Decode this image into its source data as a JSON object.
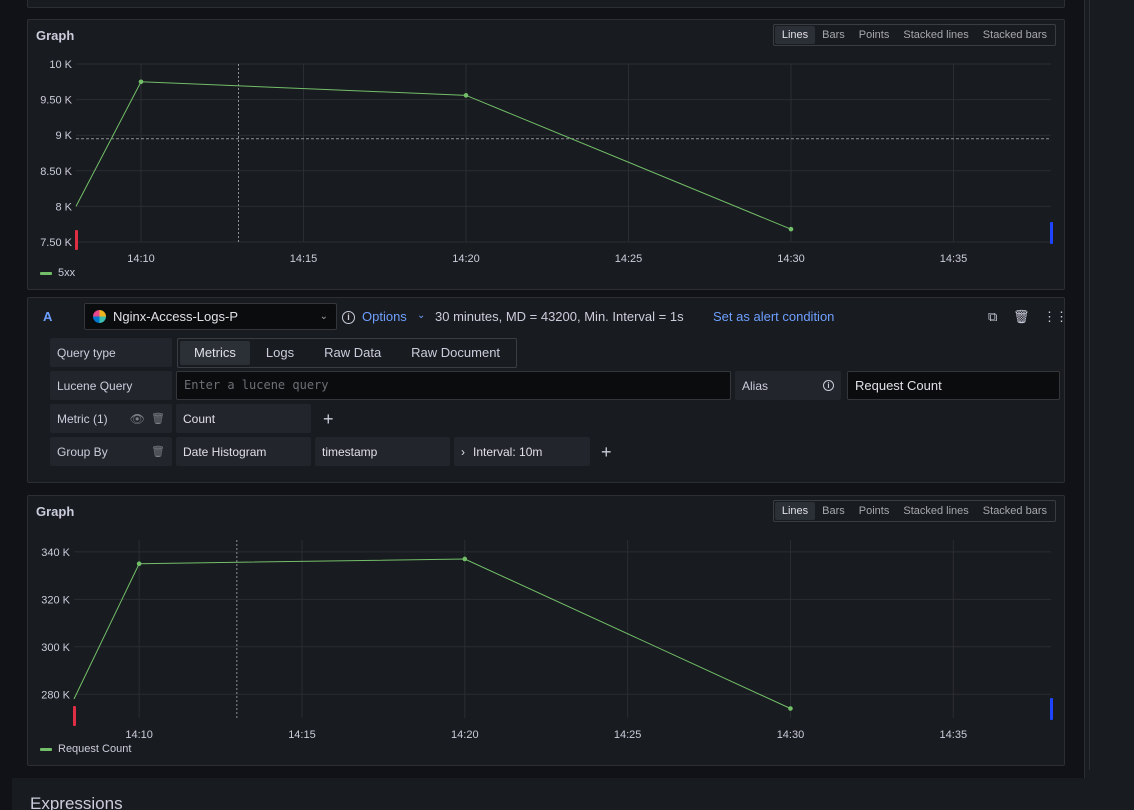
{
  "colors": {
    "series": "#73bf69",
    "accent": "#6e9fff",
    "bg": "#111217",
    "panel": "#181b1f"
  },
  "graph_modes": [
    "Lines",
    "Bars",
    "Points",
    "Stacked lines",
    "Stacked bars"
  ],
  "graph1": {
    "title": "Graph",
    "active_mode": "Lines",
    "legend": "5xx",
    "chart_data": {
      "type": "line",
      "x": [
        "14:08",
        "14:10",
        "14:20",
        "14:30"
      ],
      "series": [
        {
          "name": "5xx",
          "values": [
            8000,
            9750,
            9560,
            7680
          ]
        }
      ],
      "ylim": [
        7500,
        10000
      ],
      "y_ticks": [
        "7.50 K",
        "8 K",
        "8.50 K",
        "9 K",
        "9.50 K",
        "10 K"
      ],
      "x_ticks": [
        "14:10",
        "14:15",
        "14:20",
        "14:25",
        "14:30",
        "14:35"
      ],
      "threshold": 8950,
      "grid": true
    }
  },
  "query": {
    "letter": "A",
    "datasource": "Nginx-Access-Logs-P",
    "options_label": "Options",
    "info": "30 minutes, MD = 43200, Min. Interval = 1s",
    "alert_label": "Set as alert condition",
    "query_type_label": "Query type",
    "query_types": [
      "Metrics",
      "Logs",
      "Raw Data",
      "Raw Document"
    ],
    "active_query_type": "Metrics",
    "lucene_label": "Lucene Query",
    "lucene_placeholder": "Enter a lucene query",
    "alias_label": "Alias",
    "alias_value": "Request Count",
    "metric_label": "Metric (1)",
    "metric_value": "Count",
    "group_by_label": "Group By",
    "group_by_value": "Date Histogram",
    "group_by_field": "timestamp",
    "interval_label": "Interval: 10m"
  },
  "graph2": {
    "title": "Graph",
    "active_mode": "Lines",
    "legend": "Request Count",
    "chart_data": {
      "type": "line",
      "x": [
        "14:08",
        "14:10",
        "14:20",
        "14:30"
      ],
      "series": [
        {
          "name": "Request Count",
          "values": [
            278000,
            335000,
            337000,
            274000
          ]
        }
      ],
      "ylim": [
        270000,
        345000
      ],
      "y_ticks": [
        "280 K",
        "300 K",
        "320 K",
        "340 K"
      ],
      "x_ticks": [
        "14:10",
        "14:15",
        "14:20",
        "14:25",
        "14:30",
        "14:35"
      ],
      "grid": true
    }
  },
  "bottom": {
    "title": "Expressions"
  }
}
